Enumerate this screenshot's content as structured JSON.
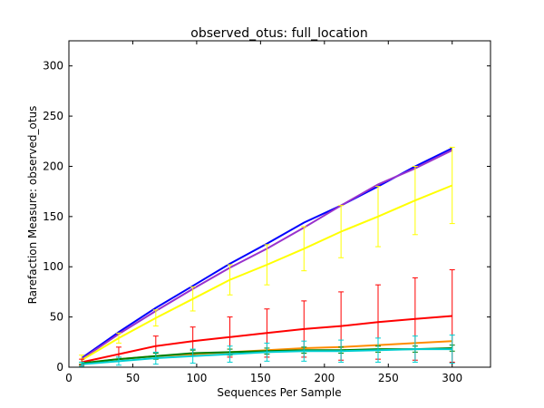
{
  "chart_data": {
    "type": "line",
    "title": "observed_otus: full_location",
    "xlabel": "Sequences Per Sample",
    "ylabel": "Rarefaction Measure: observed_otus",
    "xlim": [
      0,
      330
    ],
    "ylim": [
      0,
      325
    ],
    "xticks": [
      0,
      50,
      100,
      150,
      200,
      250,
      300
    ],
    "yticks": [
      0,
      50,
      100,
      150,
      200,
      250,
      300
    ],
    "grid": false,
    "x": [
      10,
      39,
      68,
      97,
      126,
      155,
      184,
      213,
      242,
      271,
      300
    ],
    "series": [
      {
        "color": "#0000ff",
        "values": [
          9,
          35,
          59,
          81,
          103,
          123,
          144,
          161,
          180,
          200,
          218
        ],
        "err": []
      },
      {
        "color": "#9932cc",
        "values": [
          8,
          33,
          56,
          78,
          99,
          118,
          139,
          161,
          182,
          198,
          216
        ],
        "err": []
      },
      {
        "color": "#ffff00",
        "values": [
          7,
          29,
          49,
          68,
          87,
          102,
          118,
          135,
          150,
          166,
          181
        ],
        "err": [
          5,
          5,
          8,
          12,
          15,
          20,
          22,
          26,
          30,
          34,
          38
        ]
      },
      {
        "color": "#ff0000",
        "values": [
          5,
          13,
          21,
          26,
          30,
          34,
          38,
          41,
          45,
          48,
          51
        ],
        "err": [
          3,
          7,
          10,
          14,
          20,
          24,
          28,
          34,
          37,
          41,
          46
        ]
      },
      {
        "color": "#ff8c00",
        "values": [
          4,
          8,
          11,
          13,
          15,
          17,
          19,
          20,
          22,
          24,
          26
        ],
        "err": []
      },
      {
        "color": "#008000",
        "values": [
          4,
          8,
          11,
          14,
          15,
          16,
          17,
          17,
          18,
          18,
          19
        ],
        "err": [
          1,
          2,
          3,
          3,
          3,
          3,
          3,
          3,
          3,
          3,
          3
        ]
      },
      {
        "color": "#00ced1",
        "values": [
          3,
          6,
          9,
          11,
          13,
          15,
          16,
          16,
          17,
          18,
          18
        ],
        "err": [
          2,
          4,
          6,
          7,
          8,
          9,
          10,
          11,
          12,
          13,
          14
        ]
      }
    ]
  }
}
